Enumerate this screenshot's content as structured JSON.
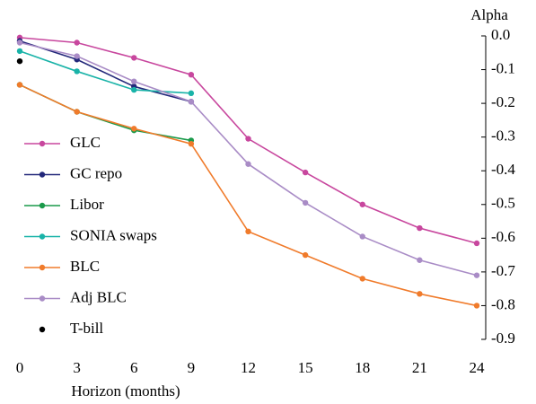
{
  "chart_data": {
    "type": "line",
    "y_label": "Alpha",
    "x_label": "Horizon (months)",
    "x": [
      0,
      3,
      6,
      9,
      12,
      15,
      18,
      21,
      24
    ],
    "xlim": [
      0,
      24
    ],
    "xticks": [
      0,
      3,
      6,
      9,
      12,
      15,
      18,
      21,
      24
    ],
    "ylim": [
      -0.9,
      0
    ],
    "yticks": [
      {
        "value": 0,
        "label": "0.0"
      },
      -0.1,
      -0.2,
      -0.3,
      -0.4,
      -0.5,
      -0.6,
      -0.7,
      -0.8,
      -0.9
    ],
    "series": [
      {
        "name": "GLC",
        "color": "#c8479e",
        "values": [
          -0.005,
          -0.02,
          -0.065,
          -0.115,
          -0.305,
          -0.405,
          -0.5,
          -0.57,
          -0.615
        ]
      },
      {
        "name": "GC repo",
        "color": "#23287a",
        "values": [
          -0.015,
          -0.07,
          -0.15,
          -0.195,
          null,
          null,
          null,
          null,
          null
        ]
      },
      {
        "name": "Libor",
        "color": "#1a9a4a",
        "values": [
          -0.145,
          -0.225,
          -0.28,
          -0.31,
          null,
          null,
          null,
          null,
          null
        ]
      },
      {
        "name": "SONIA swaps",
        "color": "#19b3a8",
        "values": [
          -0.045,
          -0.105,
          -0.16,
          -0.17,
          null,
          null,
          null,
          null,
          null
        ]
      },
      {
        "name": "BLC",
        "color": "#f07b2b",
        "values": [
          -0.145,
          -0.225,
          -0.275,
          -0.32,
          -0.58,
          -0.65,
          -0.72,
          -0.765,
          -0.8
        ]
      },
      {
        "name": "Adj BLC",
        "color": "#a98cc6",
        "values": [
          -0.02,
          -0.06,
          -0.135,
          -0.195,
          -0.38,
          -0.495,
          -0.595,
          -0.665,
          -0.71
        ]
      },
      {
        "name": "T-bill",
        "color": "#000000",
        "style": "marker",
        "values": [
          -0.075,
          null,
          null,
          null,
          null,
          null,
          null,
          null,
          null
        ]
      }
    ]
  }
}
